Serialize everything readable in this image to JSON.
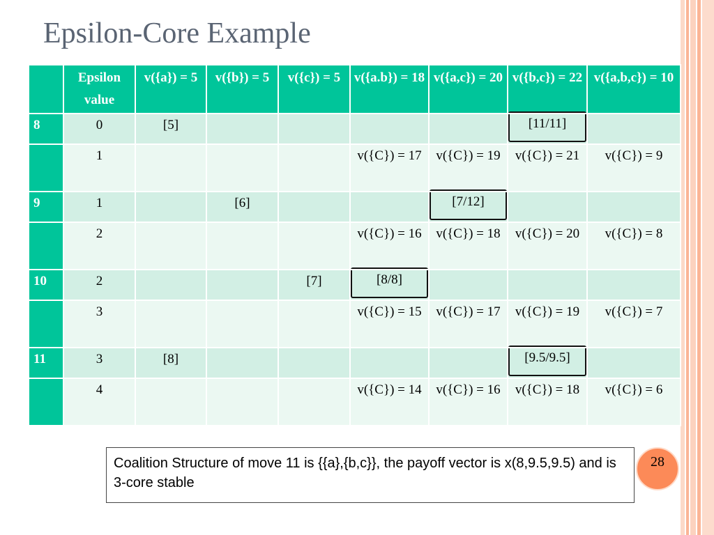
{
  "title": "Epsilon-Core Example",
  "colors": {
    "header": "#00c59a",
    "row_dark": "#d2efe4",
    "row_light": "#ebf8f2",
    "accent": "#fc8a58"
  },
  "table": {
    "headers": [
      "",
      "Epsilon value",
      "v({a}) = 5",
      "v({b}) = 5",
      "v({c}) = 5",
      "v({a.b}) = 18",
      "v({a,c}) = 20",
      "v({b,c}) = 22",
      "v({a,b,c}) = 10"
    ],
    "rows": [
      {
        "cells": [
          "8",
          "0",
          "[5]",
          "",
          "",
          "",
          "",
          "[11/11]",
          ""
        ],
        "boxed": [
          7
        ]
      },
      {
        "cells": [
          "",
          "1",
          "",
          "",
          "",
          "v({C}) = 17",
          "v({C}) = 19",
          "v({C}) = 21",
          "v({C}) = 9"
        ],
        "boxed": []
      },
      {
        "cells": [
          "9",
          "1",
          "",
          "[6]",
          "",
          "",
          "[7/12]",
          "",
          ""
        ],
        "boxed": [
          6
        ]
      },
      {
        "cells": [
          "",
          "2",
          "",
          "",
          "",
          "v({C}) = 16",
          "v({C}) = 18",
          "v({C}) = 20",
          "v({C}) = 8"
        ],
        "boxed": []
      },
      {
        "cells": [
          "10",
          "2",
          "",
          "",
          "[7]",
          "[8/8]",
          "",
          "",
          ""
        ],
        "boxed": [
          5
        ]
      },
      {
        "cells": [
          "",
          "3",
          "",
          "",
          "",
          "v({C}) = 15",
          "v({C}) = 17",
          "v({C}) = 19",
          "v({C}) = 7"
        ],
        "boxed": []
      },
      {
        "cells": [
          "11",
          "3",
          "[8]",
          "",
          "",
          "",
          "",
          "[9.5/9.5]",
          ""
        ],
        "boxed": [
          7
        ]
      },
      {
        "cells": [
          "",
          "4",
          "",
          "",
          "",
          "v({C}) = 14",
          "v({C}) = 16",
          "v({C}) = 18",
          "v({C}) = 6"
        ],
        "boxed": []
      }
    ]
  },
  "note": "Coalition Structure of move 11 is {{a},{b,c}}, the payoff vector is x(8,9.5,9.5) and is 3-core stable",
  "page_number": "28"
}
